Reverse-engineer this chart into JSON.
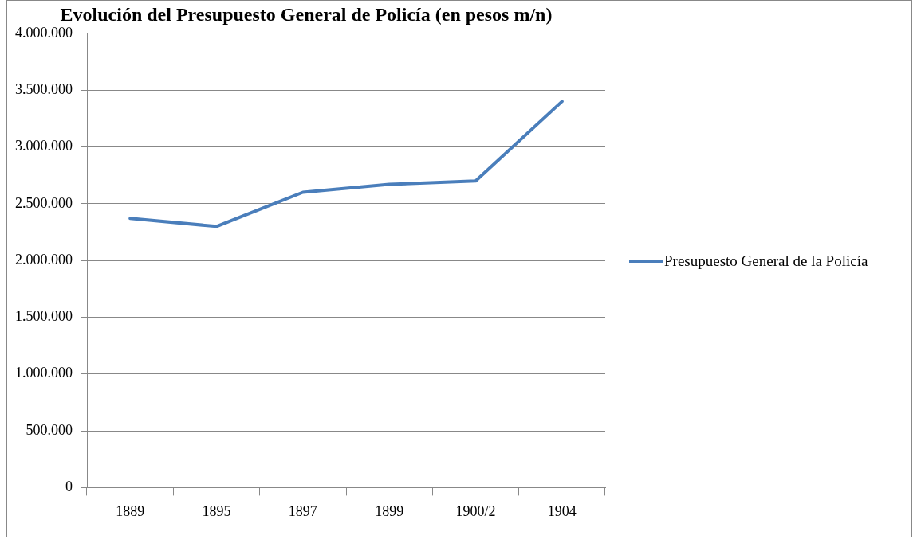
{
  "chart_data": {
    "type": "line",
    "title": "Evolución del Presupuesto General de Policía (en pesos m/n)",
    "categories": [
      "1889",
      "1895",
      "1897",
      "1899",
      "1900/2",
      "1904"
    ],
    "series": [
      {
        "name": "Presupuesto General de la Policía",
        "color": "#4a7ebb",
        "values": [
          2370000,
          2300000,
          2600000,
          2670000,
          2700000,
          3400000
        ]
      }
    ],
    "ylim": [
      0,
      4000000
    ],
    "yticks": [
      {
        "value": 0,
        "label": "0"
      },
      {
        "value": 500000,
        "label": "500.000"
      },
      {
        "value": 1000000,
        "label": "1.000.000"
      },
      {
        "value": 1500000,
        "label": "1.500.000"
      },
      {
        "value": 2000000,
        "label": "2.000.000"
      },
      {
        "value": 2500000,
        "label": "2.500.000"
      },
      {
        "value": 3000000,
        "label": "3.000.000"
      },
      {
        "value": 3500000,
        "label": "3.500.000"
      },
      {
        "value": 4000000,
        "label": "4.000.000"
      }
    ],
    "grid": "y",
    "legend": "right",
    "marker": "none",
    "line_style": "solid"
  }
}
